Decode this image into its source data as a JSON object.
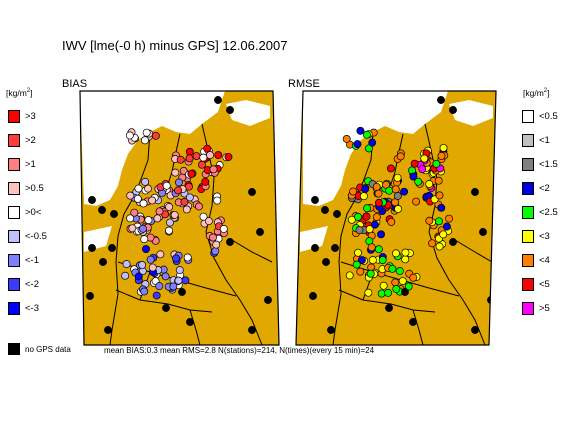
{
  "title": "IWV [lme(-0 h) minus GPS] 12.06.2007",
  "left_panel": {
    "label": "BIAS"
  },
  "right_panel": {
    "label": "RMSE"
  },
  "unit": {
    "base": "[kg/m",
    "exp": "2",
    "close": "]"
  },
  "colors": {
    "land": "#e0a800",
    "sea": "#ffffff",
    "border": "#000000"
  },
  "bias_legend": [
    {
      "label": ">3",
      "color": "#ff0000"
    },
    {
      "label": ">2",
      "color": "#ff3b3b"
    },
    {
      "label": ">1",
      "color": "#ff8080"
    },
    {
      "label": ">0.5",
      "color": "#ffc0c0"
    },
    {
      "label": ">0<",
      "color": "#ffffff"
    },
    {
      "label": "<-0.5",
      "color": "#c0c0ff"
    },
    {
      "label": "<-1",
      "color": "#8080ff"
    },
    {
      "label": "<-2",
      "color": "#3b3bff"
    },
    {
      "label": "<-3",
      "color": "#0000ff"
    }
  ],
  "rmse_legend": [
    {
      "label": "<0.5",
      "color": "#ffffff"
    },
    {
      "label": "<1",
      "color": "#c0c0c0"
    },
    {
      "label": "<1.5",
      "color": "#808080"
    },
    {
      "label": "<2",
      "color": "#0000e0"
    },
    {
      "label": "<2.5",
      "color": "#00ff00"
    },
    {
      "label": "<3",
      "color": "#ffff00"
    },
    {
      "label": "<4",
      "color": "#ff8000"
    },
    {
      "label": "<5",
      "color": "#ff0000"
    },
    {
      "label": ">5",
      "color": "#ff00ff"
    }
  ],
  "no_gps": {
    "label": "no GPS data",
    "color": "#000000"
  },
  "stats": "mean BIAS:0.3  mean RMS=2.8  N(stations)=214, N(times)(every 15 min)=24"
}
